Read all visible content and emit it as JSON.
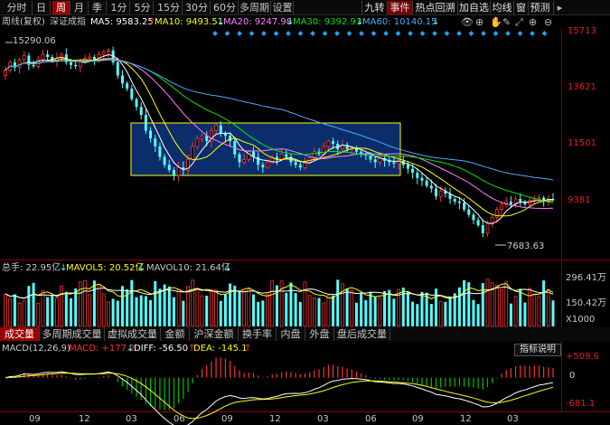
{
  "period_tabs": [
    "分时",
    "日",
    "周",
    "月",
    "季",
    "1分",
    "5分",
    "15分",
    "30分",
    "60分",
    "多周期",
    "设置"
  ],
  "active_period": "周",
  "right_tabs": [
    "九转",
    "事件",
    "热点回溯",
    "加自选",
    "均线",
    "窗",
    "预测"
  ],
  "ma_legend": {
    "title": "周线(复权)",
    "index_name": "深证成指",
    "ma5": "MA5: 9583.25",
    "ma5_arrow": "↑",
    "ma10": "MA10: 9493.51",
    "ma10_arrow": "↓",
    "ma20": "MA20: 9247.98",
    "ma20_arrow": "↓",
    "ma30": "MA30: 9392.93",
    "ma30_arrow": "↓",
    "ma60": "MA60: 10140.15",
    "ma60_arrow": "↓"
  },
  "toolbar_icons": [
    "eye-icon",
    "crosshair-icon",
    "hand-icon",
    "pencil-icon",
    "fullscreen-icon",
    "plus-circle-icon",
    "minus-circle-icon"
  ],
  "price_axis": [
    "15713",
    "13621",
    "11501",
    "9381"
  ],
  "annotations": {
    "high": "15290.06",
    "low": "7683.63"
  },
  "volume_legend": {
    "total": "总手: 22.95亿",
    "total_arrow": "↓",
    "mavol5": "MAVOL5: 20.52亿",
    "mavol5_arrow": "↓",
    "mavol10": "MAVOL10: 21.64亿",
    "mavol10_arrow": "↓"
  },
  "volume_axis": [
    "296.41万",
    "150.42万",
    "X1000"
  ],
  "indicator_tabs": [
    "成交量",
    "多周期成交量",
    "虚拟成交量",
    "金额",
    "沪深金额",
    "换手率",
    "内盘",
    "外盘",
    "盘后成交量"
  ],
  "active_indicator": "成交量",
  "macd_legend": {
    "name": "MACD(12,26,9)",
    "macd": "MACD: +177.2",
    "macd_arrow": "↓",
    "diff": "DIFF: -56.50",
    "diff_arrow": "↑",
    "dea": "DEA: -145.1",
    "dea_arrow": "↑"
  },
  "macd_axis": [
    "+509.6",
    "0",
    "-681.1"
  ],
  "explain_button": "指标说明",
  "x_axis": [
    "09",
    "12",
    "03",
    "06",
    "09",
    "12",
    "03",
    "06",
    "09",
    "12",
    "03"
  ],
  "colors": {
    "up": "#ff3232",
    "down": "#54ffff",
    "ma5": "#ffffff",
    "ma10": "#ffff00",
    "ma20": "#ff80ff",
    "ma30": "#00e600",
    "ma60": "#4ea9ff",
    "box_fill": "#0b2d6b",
    "box_border": "#ffff00"
  },
  "chart_data": {
    "type": "candlestick",
    "title": "深证成指 周线(复权)",
    "y_ticks": [
      15713,
      13621,
      11501,
      9381
    ],
    "ylim": [
      7400,
      16000
    ],
    "x_ticks": [
      "09",
      "12",
      "03",
      "06",
      "09",
      "12",
      "03",
      "06",
      "09",
      "12",
      "03"
    ],
    "high_label": 15290.06,
    "low_label": 7683.63,
    "close_series": [
      14500,
      14800,
      14600,
      14900,
      15050,
      14700,
      14650,
      14900,
      15100,
      15000,
      14850,
      14950,
      15100,
      14800,
      14700,
      14650,
      14850,
      14950,
      15000,
      14900,
      15100,
      15200,
      15250,
      14800,
      14300,
      14000,
      13800,
      13400,
      13100,
      12800,
      12200,
      11900,
      11600,
      11200,
      10900,
      10700,
      10500,
      10800,
      10700,
      11100,
      11600,
      11900,
      12000,
      11800,
      12200,
      12400,
      12100,
      12000,
      11800,
      11300,
      11000,
      11100,
      11400,
      11200,
      10900,
      10800,
      11000,
      11200,
      11100,
      11300,
      11200,
      11000,
      10900,
      10800,
      11000,
      11150,
      11400,
      11300,
      11600,
      11800,
      11700,
      11500,
      11650,
      11500,
      11550,
      11400,
      11300,
      11250,
      11100,
      11000,
      11150,
      11050,
      11000,
      10950,
      11050,
      10900,
      10750,
      10600,
      10400,
      10300,
      10100,
      10000,
      9700,
      9900,
      9800,
      9600,
      9500,
      9450,
      9200,
      9000,
      8800,
      8600,
      8300,
      8700,
      8900,
      9200,
      9400,
      9500,
      9400,
      9600,
      9500,
      9400,
      9550,
      9600,
      9650,
      9500,
      9600,
      9580
    ],
    "volume_range": [
      0,
      296.41
    ],
    "macd_range": [
      -681.1,
      509.6
    ]
  }
}
